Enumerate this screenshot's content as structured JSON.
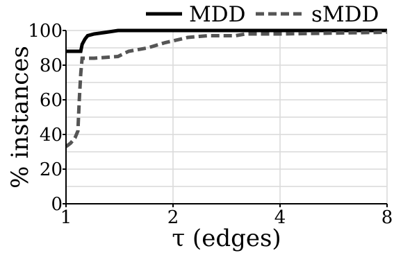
{
  "chart_data": {
    "type": "line",
    "title": "",
    "xlabel": "τ (edges)",
    "ylabel": "% instances",
    "x_scale": "log2",
    "xlim": [
      1,
      8
    ],
    "ylim": [
      0,
      100
    ],
    "x_ticks": [
      1,
      2,
      4,
      8
    ],
    "x_tick_labels": [
      "1",
      "2",
      "4",
      "8"
    ],
    "y_ticks": [
      0,
      20,
      40,
      60,
      80,
      100
    ],
    "y_tick_labels": [
      "0",
      "20",
      "40",
      "60",
      "80",
      "100"
    ],
    "grid": true,
    "legend_position": "top",
    "series": [
      {
        "name": "MDD",
        "color": "#000000",
        "line_style": "solid",
        "points": [
          [
            1.0,
            88
          ],
          [
            1.1,
            88
          ],
          [
            1.11,
            92
          ],
          [
            1.13,
            95
          ],
          [
            1.15,
            97
          ],
          [
            1.2,
            98
          ],
          [
            1.3,
            99
          ],
          [
            1.4,
            100
          ],
          [
            8.0,
            100
          ]
        ]
      },
      {
        "name": "sMDD",
        "color": "#555555",
        "line_style": "dashed",
        "points": [
          [
            1.0,
            33
          ],
          [
            1.03,
            35
          ],
          [
            1.06,
            38
          ],
          [
            1.08,
            42
          ],
          [
            1.09,
            60
          ],
          [
            1.1,
            75
          ],
          [
            1.11,
            84
          ],
          [
            1.2,
            84
          ],
          [
            1.4,
            85
          ],
          [
            1.5,
            88
          ],
          [
            1.7,
            90
          ],
          [
            1.9,
            93
          ],
          [
            2.0,
            94
          ],
          [
            2.2,
            96
          ],
          [
            2.5,
            97
          ],
          [
            3.0,
            97
          ],
          [
            3.2,
            98
          ],
          [
            4.0,
            98
          ],
          [
            8.0,
            99
          ]
        ]
      }
    ]
  }
}
